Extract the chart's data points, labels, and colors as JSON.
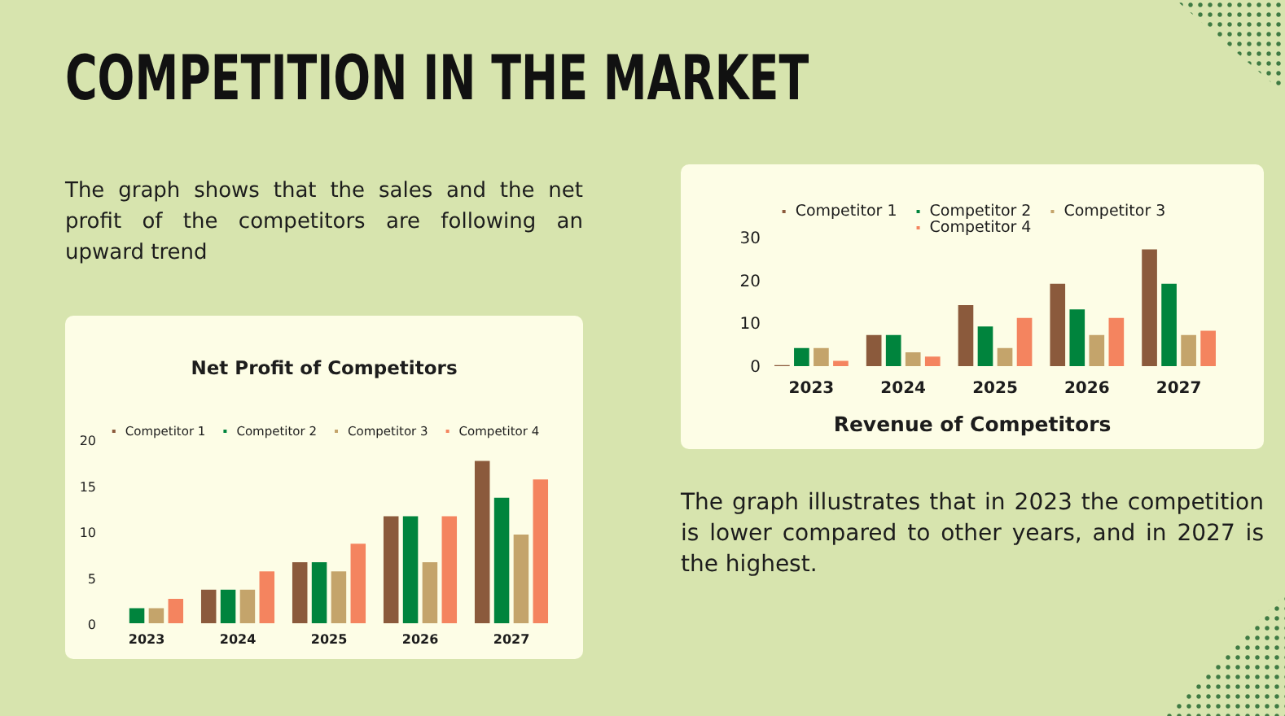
{
  "chart_data": [
    {
      "type": "other",
      "title": "COMPETITION IN THE MARKET"
    },
    {
      "type": "bar",
      "title": "Net Profit of Competitors",
      "annotations": [
        "The graph shows that the sales and the net profit of the competitors are following an upward trend"
      ],
      "categories": [
        "2023",
        "2024",
        "2025",
        "2026",
        "2027"
      ],
      "series": [
        {
          "name": "Competitor 1",
          "color": "#8b5a3c",
          "values": [
            null,
            4,
            7,
            12,
            18
          ]
        },
        {
          "name": "Competitor 2",
          "color": "#00843d",
          "values": [
            2,
            4,
            7,
            12,
            14
          ]
        },
        {
          "name": "Competitor 3",
          "color": "#c4a46b",
          "values": [
            2,
            4,
            6,
            7,
            10
          ]
        },
        {
          "name": "Competitor 4",
          "color": "#f4845f",
          "values": [
            3,
            6,
            9,
            12,
            16
          ]
        }
      ],
      "ylim": [
        0,
        20
      ],
      "yticks": [
        0,
        5,
        10,
        15,
        20
      ],
      "legend": "top"
    },
    {
      "type": "bar",
      "title": "Revenue of Competitors",
      "annotations": [
        "The graph illustrates that in 2023 the competition is lower compared to other years, and in 2027 is the highest."
      ],
      "categories": [
        "2023",
        "2024",
        "2025",
        "2026",
        "2027"
      ],
      "series": [
        {
          "name": "Competitor 1",
          "color": "#8b5a3c",
          "values": [
            1,
            8,
            15,
            20,
            28
          ]
        },
        {
          "name": "Competitor 2",
          "color": "#00843d",
          "values": [
            5,
            8,
            10,
            14,
            20
          ]
        },
        {
          "name": "Competitor 3",
          "color": "#c4a46b",
          "values": [
            5,
            4,
            5,
            8,
            8
          ]
        },
        {
          "name": "Competitor 4",
          "color": "#f4845f",
          "values": [
            2,
            3,
            12,
            12,
            9
          ]
        }
      ],
      "ylim": [
        0,
        30
      ],
      "yticks": [
        0,
        10,
        20,
        30
      ],
      "legend": "top"
    }
  ]
}
